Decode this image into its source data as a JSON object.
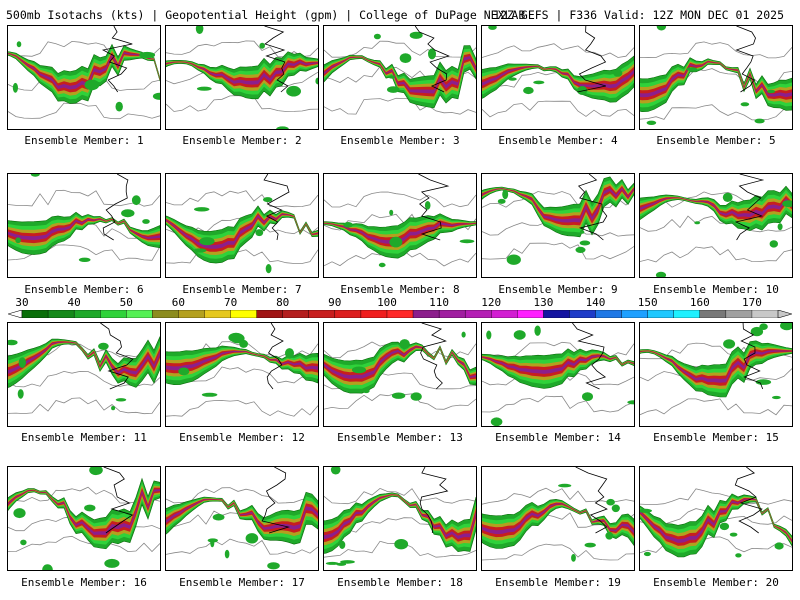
{
  "header": {
    "title_left": "500mb Isotachs (kts) | Geopotential Height (gpm) | College of DuPage NEXLAB",
    "title_right": "12Z GEFS | F336 Valid: 12Z MON DEC 01 2025"
  },
  "panels": [
    {
      "label": "Ensemble Member: 1"
    },
    {
      "label": "Ensemble Member: 2"
    },
    {
      "label": "Ensemble Member: 3"
    },
    {
      "label": "Ensemble Member: 4"
    },
    {
      "label": "Ensemble Member: 5"
    },
    {
      "label": "Ensemble Member: 6"
    },
    {
      "label": "Ensemble Member: 7"
    },
    {
      "label": "Ensemble Member: 8"
    },
    {
      "label": "Ensemble Member: 9"
    },
    {
      "label": "Ensemble Member: 10"
    },
    {
      "label": "Ensemble Member: 11"
    },
    {
      "label": "Ensemble Member: 12"
    },
    {
      "label": "Ensemble Member: 13"
    },
    {
      "label": "Ensemble Member: 14"
    },
    {
      "label": "Ensemble Member: 15"
    },
    {
      "label": "Ensemble Member: 16"
    },
    {
      "label": "Ensemble Member: 17"
    },
    {
      "label": "Ensemble Member: 18"
    },
    {
      "label": "Ensemble Member: 19"
    },
    {
      "label": "Ensemble Member: 20"
    }
  ],
  "colorbar": {
    "tick_labels": [
      "30",
      "40",
      "50",
      "60",
      "70",
      "80",
      "90",
      "100",
      "110",
      "120",
      "130",
      "140",
      "150",
      "160",
      "170"
    ],
    "bins": [
      {
        "min": 30,
        "max": 35,
        "color": "#0a6e0a"
      },
      {
        "min": 35,
        "max": 40,
        "color": "#15891a"
      },
      {
        "min": 40,
        "max": 45,
        "color": "#1fa92a"
      },
      {
        "min": 45,
        "max": 50,
        "color": "#2fd23a"
      },
      {
        "min": 50,
        "max": 55,
        "color": "#55f055"
      },
      {
        "min": 55,
        "max": 60,
        "color": "#8c8c1e"
      },
      {
        "min": 60,
        "max": 65,
        "color": "#b4a01e"
      },
      {
        "min": 65,
        "max": 70,
        "color": "#e6c81e"
      },
      {
        "min": 70,
        "max": 75,
        "color": "#ffff00"
      },
      {
        "min": 75,
        "max": 80,
        "color": "#a01414"
      },
      {
        "min": 80,
        "max": 85,
        "color": "#b41e1e"
      },
      {
        "min": 85,
        "max": 90,
        "color": "#c81e1e"
      },
      {
        "min": 90,
        "max": 95,
        "color": "#dc1e1e"
      },
      {
        "min": 95,
        "max": 100,
        "color": "#f01e1e"
      },
      {
        "min": 100,
        "max": 105,
        "color": "#ff2828"
      },
      {
        "min": 105,
        "max": 110,
        "color": "#8c1e8c"
      },
      {
        "min": 110,
        "max": 115,
        "color": "#a01ea0"
      },
      {
        "min": 115,
        "max": 120,
        "color": "#b41eb4"
      },
      {
        "min": 120,
        "max": 125,
        "color": "#d21ed2"
      },
      {
        "min": 125,
        "max": 130,
        "color": "#ff1eff"
      },
      {
        "min": 130,
        "max": 135,
        "color": "#1414a0"
      },
      {
        "min": 135,
        "max": 140,
        "color": "#1e3cc8"
      },
      {
        "min": 140,
        "max": 145,
        "color": "#1e78e6"
      },
      {
        "min": 145,
        "max": 150,
        "color": "#1ea0ff"
      },
      {
        "min": 150,
        "max": 155,
        "color": "#1ec8ff"
      },
      {
        "min": 155,
        "max": 160,
        "color": "#1ef0ff"
      },
      {
        "min": 160,
        "max": 165,
        "color": "#787878"
      },
      {
        "min": 165,
        "max": 170,
        "color": "#a0a0a0"
      },
      {
        "min": 170,
        "max": 175,
        "color": "#c8c8c8"
      }
    ]
  }
}
